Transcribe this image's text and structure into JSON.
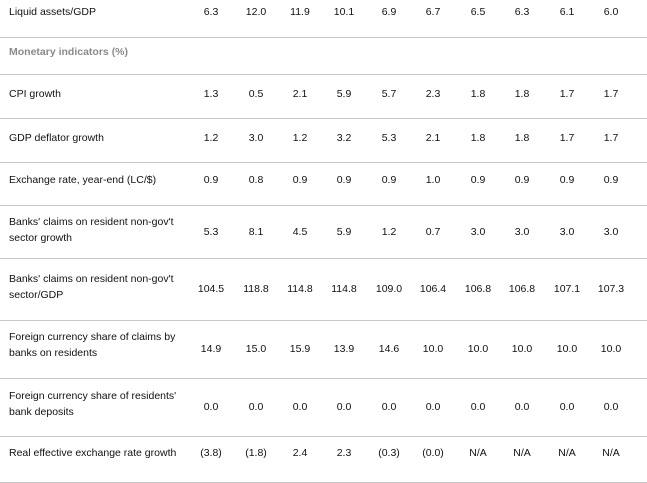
{
  "rows": [
    {
      "label": "Liquid assets/GDP",
      "values": [
        "6.3",
        "12.0",
        "11.9",
        "10.1",
        "6.9",
        "6.7",
        "6.5",
        "6.3",
        "6.1",
        "6.0"
      ]
    },
    {
      "label": "Monetary indicators (%)",
      "section": true,
      "values": []
    },
    {
      "label": "CPI growth",
      "values": [
        "1.3",
        "0.5",
        "2.1",
        "5.9",
        "5.7",
        "2.3",
        "1.8",
        "1.8",
        "1.7",
        "1.7"
      ]
    },
    {
      "label": "GDP deflator growth",
      "values": [
        "1.2",
        "3.0",
        "1.2",
        "3.2",
        "5.3",
        "2.1",
        "1.8",
        "1.8",
        "1.7",
        "1.7"
      ]
    },
    {
      "label": "Exchange rate, year-end (LC/$)",
      "values": [
        "0.9",
        "0.8",
        "0.9",
        "0.9",
        "0.9",
        "1.0",
        "0.9",
        "0.9",
        "0.9",
        "0.9"
      ]
    },
    {
      "label": "Banks' claims on resident non-gov't sector growth",
      "values": [
        "5.3",
        "8.1",
        "4.5",
        "5.9",
        "1.2",
        "0.7",
        "3.0",
        "3.0",
        "3.0",
        "3.0"
      ]
    },
    {
      "label": "Banks' claims on resident non-gov't sector/GDP",
      "values": [
        "104.5",
        "118.8",
        "114.8",
        "114.8",
        "109.0",
        "106.4",
        "106.8",
        "106.8",
        "107.1",
        "107.3"
      ]
    },
    {
      "label": "Foreign currency share of claims by banks on residents",
      "values": [
        "14.9",
        "15.0",
        "15.9",
        "13.9",
        "14.6",
        "10.0",
        "10.0",
        "10.0",
        "10.0",
        "10.0"
      ]
    },
    {
      "label": "Foreign currency share of residents' bank deposits",
      "values": [
        "0.0",
        "0.0",
        "0.0",
        "0.0",
        "0.0",
        "0.0",
        "0.0",
        "0.0",
        "0.0",
        "0.0"
      ]
    },
    {
      "label": "Real effective exchange rate growth",
      "values": [
        "(3.8)",
        "(1.8)",
        "2.4",
        "2.3",
        "(0.3)",
        "(0.0)",
        "N/A",
        "N/A",
        "N/A",
        "N/A"
      ]
    }
  ]
}
